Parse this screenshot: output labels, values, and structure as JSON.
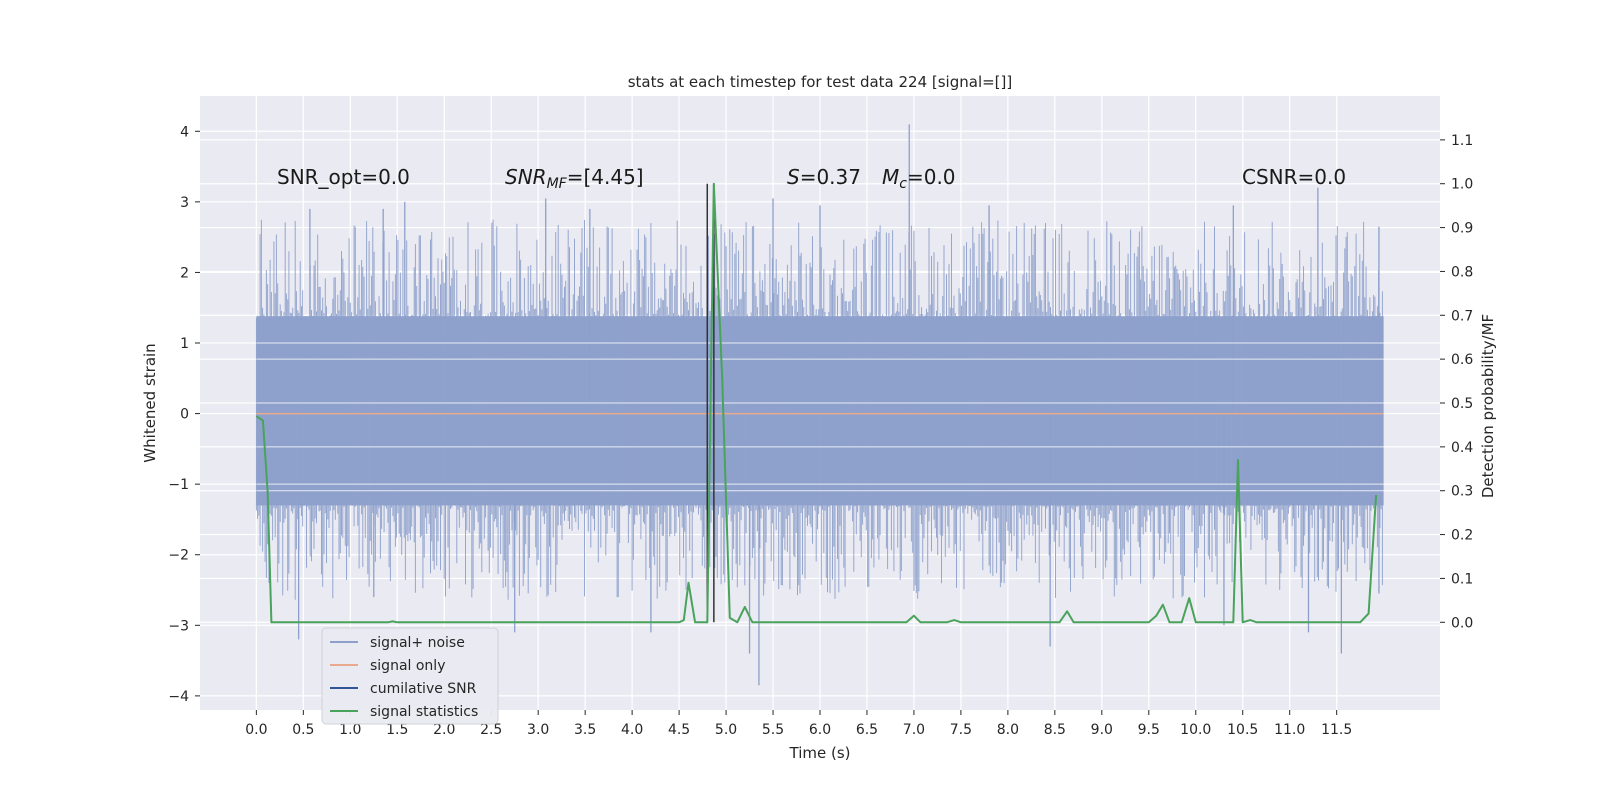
{
  "chart_data": {
    "type": "line",
    "title": "stats at each timestep for test data 224 [signal=[]]",
    "xlabel": "Time (s)",
    "ylabel": "Whitened strain",
    "ylabel_right": "Detection probability/MF",
    "xlim": [
      -0.6,
      12.6
    ],
    "ylim": [
      -4.2,
      4.5
    ],
    "ylim_right": [
      -0.2,
      1.2
    ],
    "x_ticks": [
      "0.0",
      "0.5",
      "1.0",
      "1.5",
      "2.0",
      "2.5",
      "3.0",
      "3.5",
      "4.0",
      "4.5",
      "5.0",
      "5.5",
      "6.0",
      "6.5",
      "7.0",
      "7.5",
      "8.0",
      "8.5",
      "9.0",
      "9.5",
      "10.0",
      "10.5",
      "11.0",
      "11.5"
    ],
    "y_ticks_left": [
      "4",
      "3",
      "2",
      "1",
      "0",
      "−1",
      "−2",
      "−3",
      "−4"
    ],
    "y_ticks_right": [
      "1.1",
      "1.0",
      "0.9",
      "0.8",
      "0.7",
      "0.6",
      "0.5",
      "0.4",
      "0.3",
      "0.2",
      "0.1",
      "0.0"
    ],
    "grid": true,
    "legend_position": "lower-left",
    "annotations": {
      "snr_opt": "SNR_opt=0.0",
      "snr_mf_sym": "SNR",
      "snr_mf_sub": "MF",
      "snr_mf_val": "=[4.45]",
      "s_sym": "S",
      "s_val": "=0.37",
      "mc_sym": "M",
      "mc_sub": "c",
      "mc_val": "=0.0",
      "csnr": "CSNR=0.0"
    },
    "series": [
      {
        "name": "signal+ noise",
        "color": "#8da0cb",
        "x_range": [
          0.0,
          12.0
        ],
        "band_range": [
          -1.8,
          1.8
        ],
        "spikes": [
          [
            0.57,
            2.9
          ],
          [
            1.35,
            2.9
          ],
          [
            1.58,
            3.0
          ],
          [
            3.08,
            3.05
          ],
          [
            3.55,
            2.9
          ],
          [
            5.5,
            3.05
          ],
          [
            6.0,
            2.95
          ],
          [
            6.95,
            4.1
          ],
          [
            7.8,
            2.95
          ],
          [
            10.4,
            2.95
          ],
          [
            11.3,
            3.2
          ],
          [
            11.95,
            2.65
          ],
          [
            0.45,
            -3.2
          ],
          [
            1.25,
            -2.6
          ],
          [
            2.75,
            -3.1
          ],
          [
            4.2,
            -3.1
          ],
          [
            5.35,
            -3.85
          ],
          [
            5.25,
            -3.4
          ],
          [
            8.45,
            -3.3
          ],
          [
            10.3,
            -3.0
          ],
          [
            11.2,
            -3.1
          ],
          [
            11.55,
            -3.4
          ],
          [
            11.95,
            -2.55
          ]
        ]
      },
      {
        "name": "signal only",
        "color": "#e8a98d",
        "points": [
          [
            0.0,
            0.0
          ],
          [
            12.0,
            0.0
          ]
        ]
      },
      {
        "name": "cumilative SNR",
        "color": "#2f5597",
        "points": []
      },
      {
        "name": "signal statistics",
        "color": "#4aa35b",
        "axis": "right",
        "points": [
          [
            0.0,
            0.47
          ],
          [
            0.07,
            0.46
          ],
          [
            0.12,
            0.3
          ],
          [
            0.16,
            0.0
          ],
          [
            0.22,
            0.0
          ],
          [
            1.4,
            0.0
          ],
          [
            1.45,
            0.002
          ],
          [
            1.5,
            0.0
          ],
          [
            4.5,
            0.0
          ],
          [
            4.55,
            0.005
          ],
          [
            4.6,
            0.09
          ],
          [
            4.67,
            0.0
          ],
          [
            4.75,
            0.0
          ],
          [
            4.8,
            0.0
          ],
          [
            4.87,
            1.0
          ],
          [
            4.96,
            0.55
          ],
          [
            5.04,
            0.01
          ],
          [
            5.12,
            0.0
          ],
          [
            5.2,
            0.035
          ],
          [
            5.28,
            0.0
          ],
          [
            6.92,
            0.0
          ],
          [
            7.0,
            0.015
          ],
          [
            7.07,
            0.0
          ],
          [
            7.35,
            0.0
          ],
          [
            7.43,
            0.005
          ],
          [
            7.5,
            0.0
          ],
          [
            8.55,
            0.0
          ],
          [
            8.63,
            0.025
          ],
          [
            8.7,
            0.0
          ],
          [
            9.5,
            0.0
          ],
          [
            9.58,
            0.015
          ],
          [
            9.65,
            0.04
          ],
          [
            9.72,
            0.0
          ],
          [
            9.85,
            0.0
          ],
          [
            9.93,
            0.055
          ],
          [
            10.0,
            0.0
          ],
          [
            10.35,
            0.0
          ],
          [
            10.4,
            0.0
          ],
          [
            10.45,
            0.37
          ],
          [
            10.5,
            0.0
          ],
          [
            10.58,
            0.005
          ],
          [
            10.65,
            0.0
          ],
          [
            11.75,
            0.0
          ],
          [
            11.84,
            0.02
          ],
          [
            11.92,
            0.29
          ]
        ]
      }
    ],
    "vlines": [
      {
        "x": 4.8,
        "from": 0.0,
        "to": 1.0,
        "color": "#333333"
      },
      {
        "x": 4.87,
        "from": 0.0,
        "to": 1.0,
        "color": "#333333"
      }
    ]
  }
}
